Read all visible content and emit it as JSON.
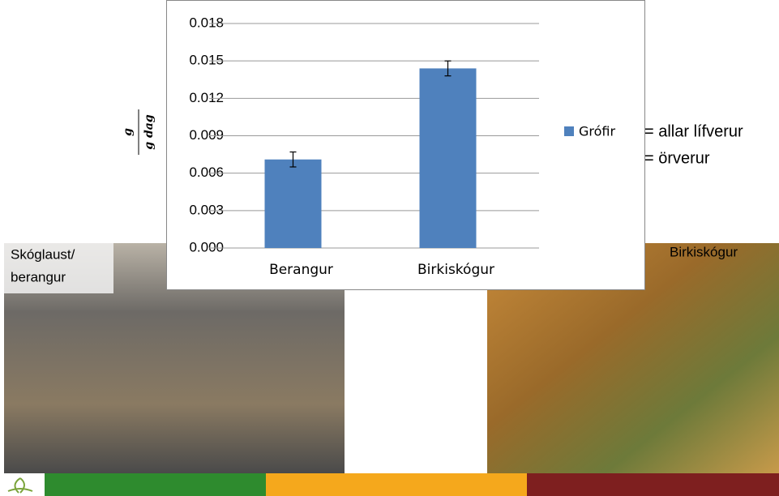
{
  "chart_data": {
    "type": "bar",
    "y_label": {
      "numerator": "g",
      "denominator": "g dag"
    },
    "categories": [
      "Berangur",
      "Birkiskógur"
    ],
    "series": [
      {
        "name": "Grófir",
        "color": "#4f81bd",
        "values": [
          0.0071,
          0.0144
        ],
        "errors": [
          0.0006,
          0.0006
        ]
      }
    ],
    "ylim": [
      0,
      0.018
    ],
    "yticks": [
      {
        "value": 0,
        "label": "0.000"
      },
      0.003,
      0.006,
      0.009,
      0.012,
      0.015,
      0.018
    ],
    "grid": true,
    "legend": "right"
  },
  "slide": {
    "notes": [
      "= allar lífverur",
      "= örverur"
    ],
    "photo_labels": [
      {
        "lines": [
          "Skóglaust/",
          "berangur"
        ]
      },
      {
        "lines": [
          "Birkiskógur"
        ]
      }
    ]
  }
}
